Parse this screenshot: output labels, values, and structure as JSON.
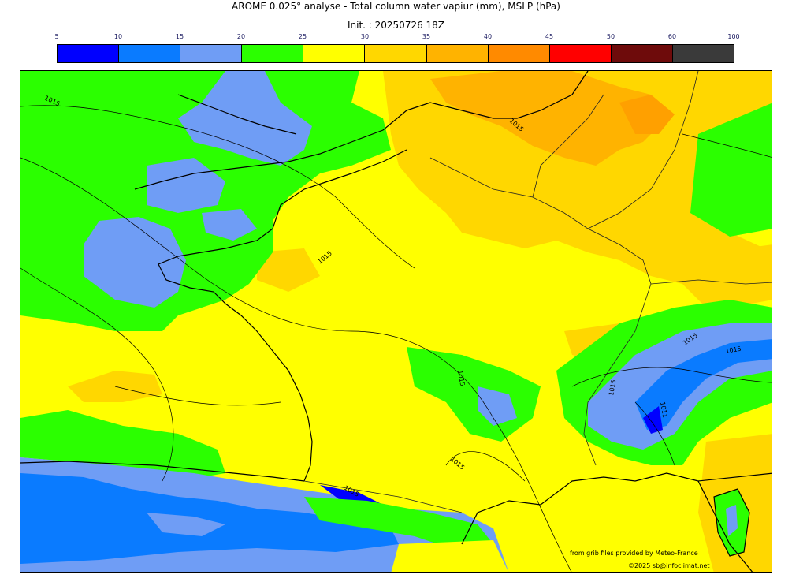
{
  "title_line1": "AROME 0.025° analyse - Total column water vapiur (mm), MSLP (hPa)",
  "title_line2": "Init. : 20250726 18Z",
  "colorbar": {
    "ticks": [
      "5",
      "10",
      "15",
      "20",
      "25",
      "30",
      "35",
      "40",
      "45",
      "50",
      "60",
      "100"
    ],
    "colors": [
      "#0000ff",
      "#0a7bff",
      "#6f9df5",
      "#2bff00",
      "#ffff00",
      "#ffd700",
      "#ffb300",
      "#ff8a00",
      "#ff0000",
      "#6e0b0b",
      "#3a3a3a"
    ]
  },
  "isobar_labels": [
    "1015",
    "1015",
    "1015",
    "1015",
    "1015",
    "1015",
    "1015",
    "1015",
    "1015",
    "1015",
    "1011",
    "1013"
  ],
  "credits": {
    "line1": "from grib files provided by Meteo-France",
    "line2": "©2025 sb@infoclimat.net"
  }
}
